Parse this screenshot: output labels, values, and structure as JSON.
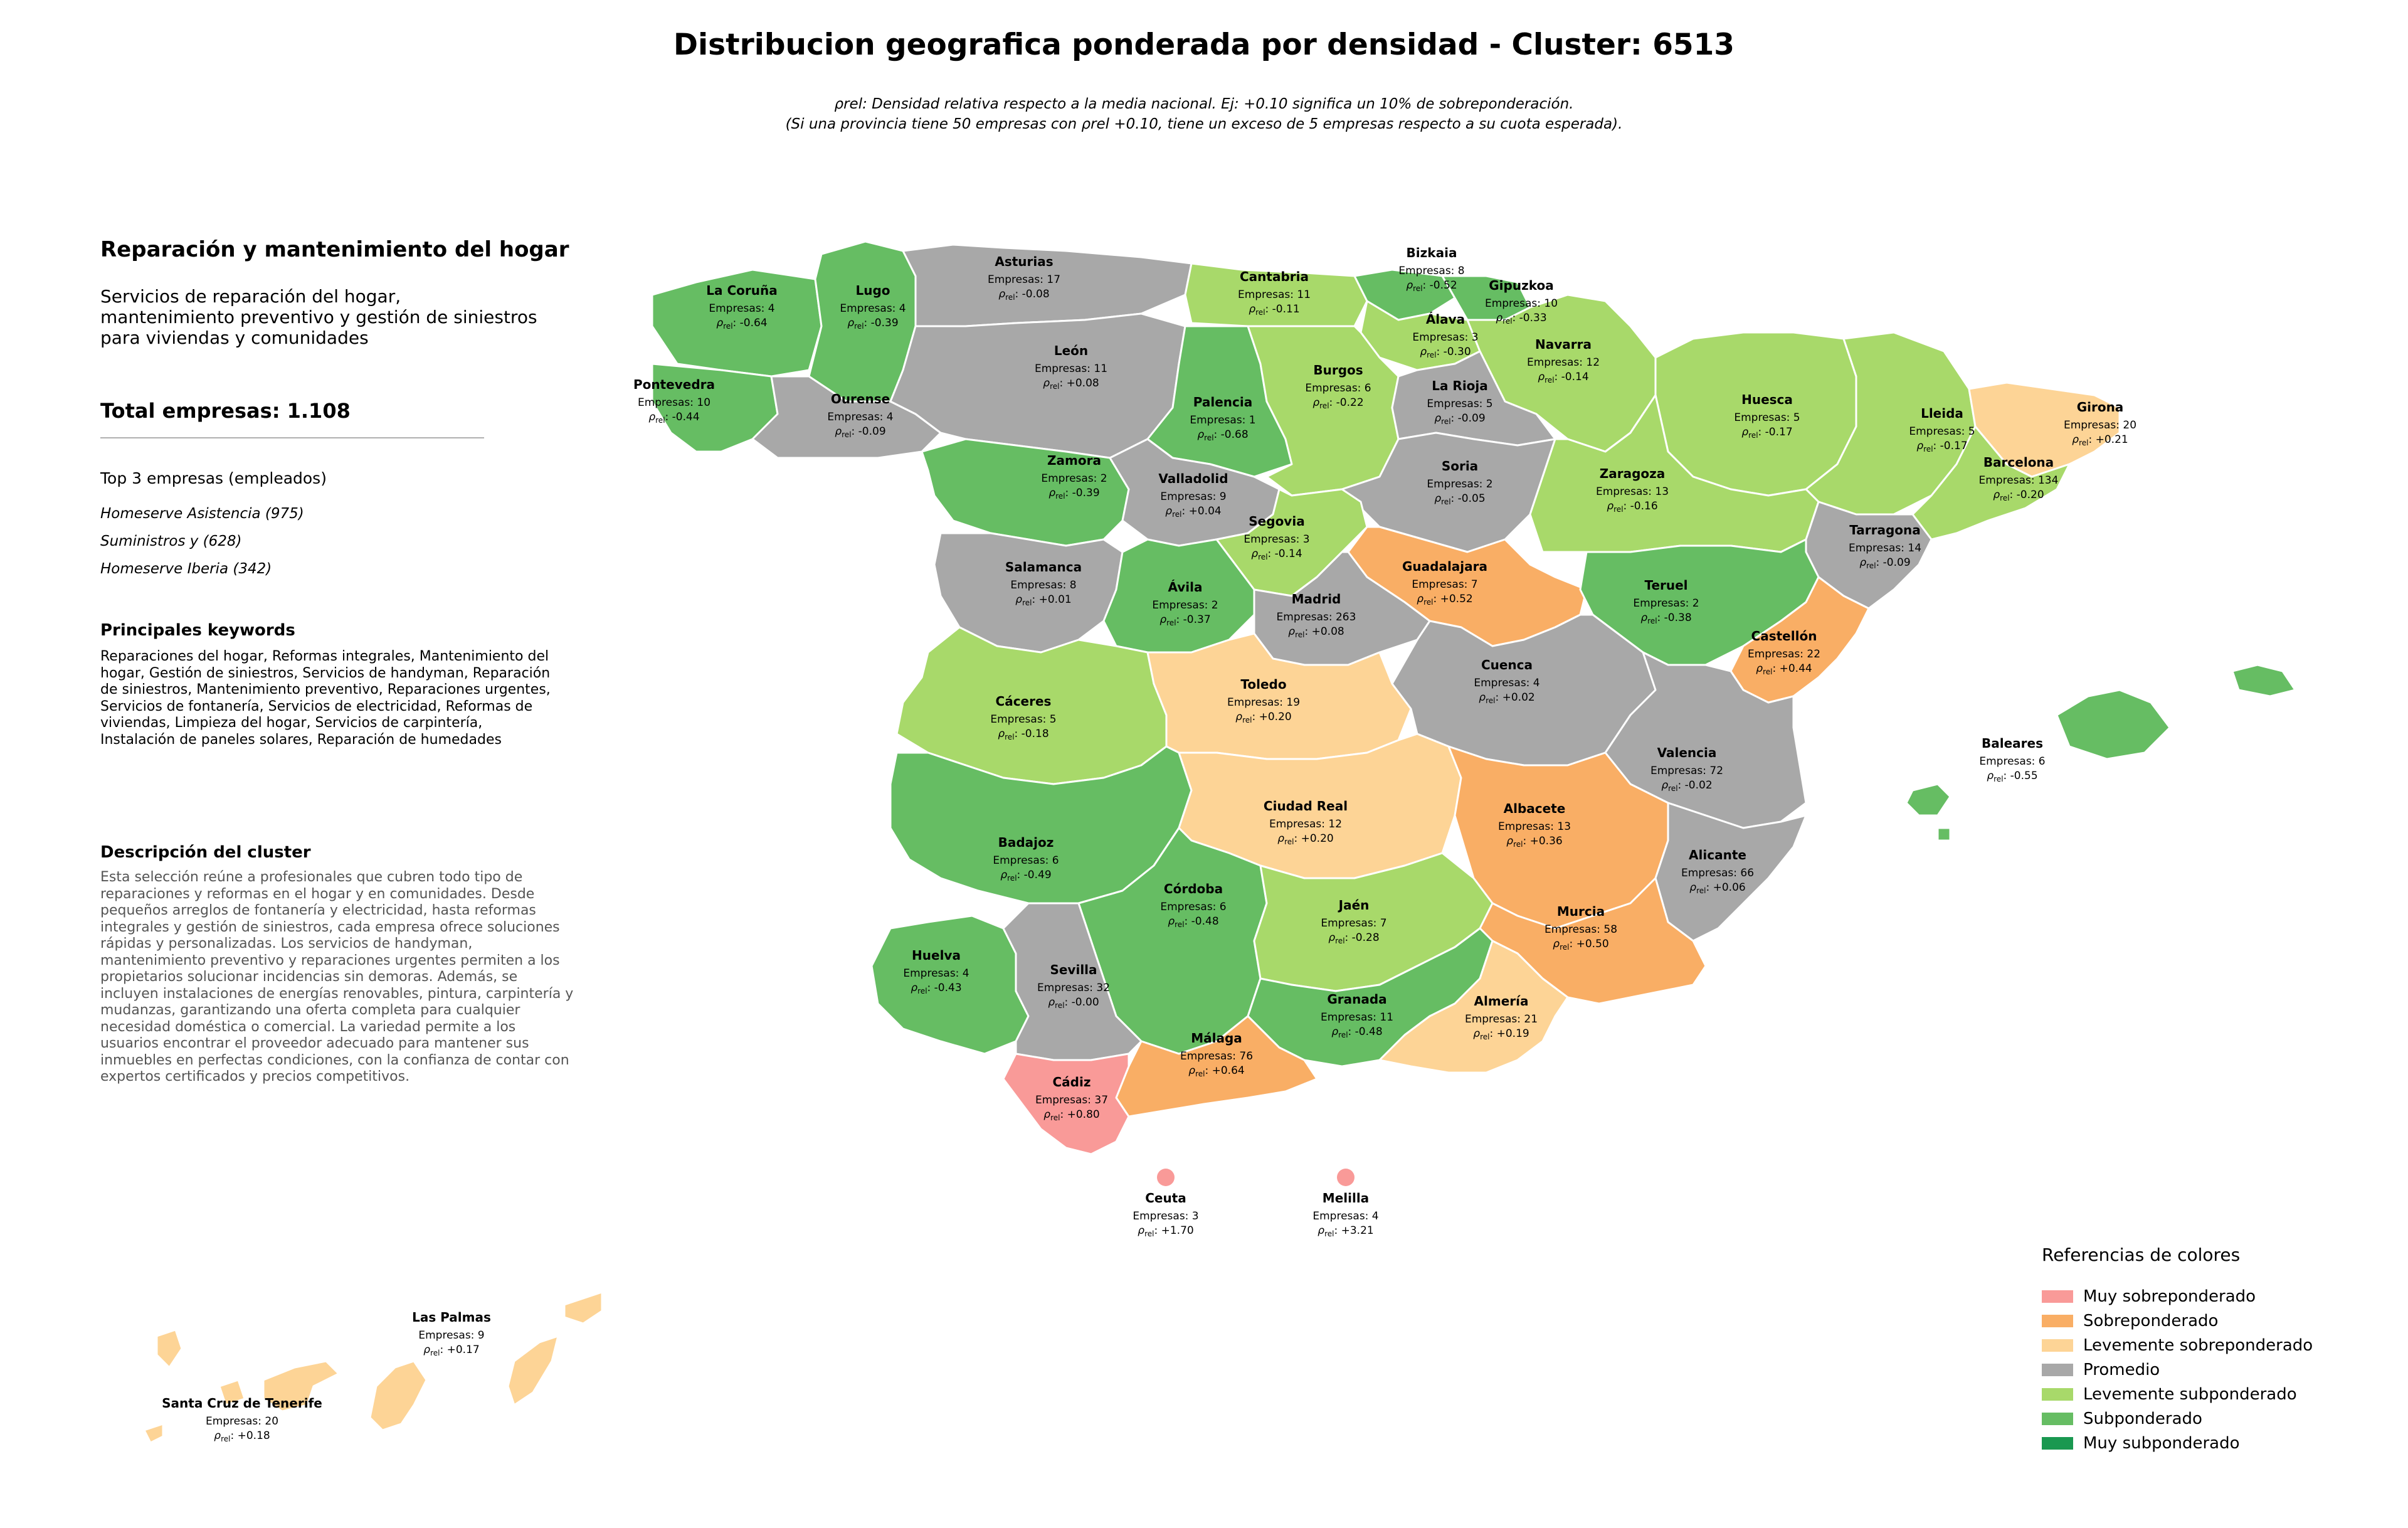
{
  "title": "Distribucion geografica ponderada por densidad - Cluster: 6513",
  "subtitle": {
    "line1": "ρrel: Densidad relativa respecto a la media nacional. Ej: +0.10 significa un 10% de sobreponderación.",
    "line2": "(Si una provincia tiene 50 empresas con ρrel +0.10, tiene un exceso de 5 empresas respecto a su cuota esperada)."
  },
  "sidebar": {
    "heading": "Reparación y mantenimiento del hogar",
    "description": "Servicios de reparación del hogar, mantenimiento preventivo y gestión de siniestros para viviendas y comunidades",
    "total": "Total empresas: 1.108",
    "top3_title": "Top 3 empresas (empleados)",
    "top3": [
      "Homeserve Asistencia (975)",
      "Suministros y (628)",
      "Homeserve Iberia (342)"
    ],
    "keywords_title": "Principales keywords",
    "keywords": "Reparaciones del hogar, Reformas integrales, Mantenimiento del hogar, Gestión de siniestros, Servicios de handyman, Reparación de siniestros, Mantenimiento preventivo, Reparaciones urgentes, Servicios de fontanería, Servicios de electricidad, Reformas de viviendas, Limpieza del hogar, Servicios de carpintería, Instalación de paneles solares, Reparación de humedades",
    "cluster_title": "Descripción del cluster",
    "cluster_text": "Esta selección reúne a profesionales que cubren todo tipo de reparaciones y reformas en el hogar y en comunidades. Desde pequeños arreglos de fontanería y electricidad, hasta reformas integrales y gestión de siniestros, cada empresa ofrece soluciones rápidas y personalizadas. Los servicios de handyman, mantenimiento preventivo y reparaciones urgentes permiten a los propietarios solucionar incidencias sin demoras. Además, se incluyen instalaciones de energías renovables, pintura, carpintería y mudanzas, garantizando una oferta completa para cualquier necesidad doméstica o comercial. La variedad permite a los usuarios encontrar el proveedor adecuado para mantener sus inmuebles en perfectas condiciones, con la confianza de contar con expertos certificados y precios competitivos."
  },
  "labels": {
    "companies_prefix": "Empresas: ",
    "rho_symbol": "ρ",
    "rho_sub": "rel"
  },
  "colors": {
    "Muy sobreponderado": "#f99a98",
    "Sobreponderado": "#f9ae65",
    "Levemente sobreponderado": "#fdd496",
    "Promedio": "#a8a8a8",
    "Levemente subponderado": "#a8d96a",
    "Subponderado": "#66bd63",
    "Muy subponderado": "#1a9850"
  },
  "legend": {
    "title": "Referencias de colores",
    "items": [
      "Muy sobreponderado",
      "Sobreponderado",
      "Levemente sobreponderado",
      "Promedio",
      "Levemente subponderado",
      "Subponderado",
      "Muy subponderado"
    ]
  },
  "provinces": [
    {
      "name": "La Coruña",
      "empresas": 4,
      "rho": "-0.64",
      "category": "Subponderado"
    },
    {
      "name": "Lugo",
      "empresas": 4,
      "rho": "-0.39",
      "category": "Subponderado"
    },
    {
      "name": "Asturias",
      "empresas": 17,
      "rho": "-0.08",
      "category": "Promedio"
    },
    {
      "name": "Cantabria",
      "empresas": 11,
      "rho": "-0.11",
      "category": "Levemente subponderado"
    },
    {
      "name": "Bizkaia",
      "empresas": 8,
      "rho": "-0.52",
      "category": "Subponderado"
    },
    {
      "name": "Gipuzkoa",
      "empresas": 10,
      "rho": "-0.33",
      "category": "Subponderado"
    },
    {
      "name": "Álava",
      "empresas": 3,
      "rho": "-0.30",
      "category": "Levemente subponderado"
    },
    {
      "name": "Navarra",
      "empresas": 12,
      "rho": "-0.14",
      "category": "Levemente subponderado"
    },
    {
      "name": "Pontevedra",
      "empresas": 10,
      "rho": "-0.44",
      "category": "Subponderado"
    },
    {
      "name": "Ourense",
      "empresas": 4,
      "rho": "-0.09",
      "category": "Promedio"
    },
    {
      "name": "León",
      "empresas": 11,
      "rho": "+0.08",
      "category": "Promedio"
    },
    {
      "name": "Palencia",
      "empresas": 1,
      "rho": "-0.68",
      "category": "Subponderado"
    },
    {
      "name": "Burgos",
      "empresas": 6,
      "rho": "-0.22",
      "category": "Levemente subponderado"
    },
    {
      "name": "La Rioja",
      "empresas": 5,
      "rho": "-0.09",
      "category": "Promedio"
    },
    {
      "name": "Huesca",
      "empresas": 5,
      "rho": "-0.17",
      "category": "Levemente subponderado"
    },
    {
      "name": "Lleida",
      "empresas": 5,
      "rho": "-0.17",
      "category": "Levemente subponderado"
    },
    {
      "name": "Girona",
      "empresas": 20,
      "rho": "+0.21",
      "category": "Levemente sobreponderado"
    },
    {
      "name": "Barcelona",
      "empresas": 134,
      "rho": "-0.20",
      "category": "Levemente subponderado"
    },
    {
      "name": "Zamora",
      "empresas": 2,
      "rho": "-0.39",
      "category": "Subponderado"
    },
    {
      "name": "Valladolid",
      "empresas": 9,
      "rho": "+0.04",
      "category": "Promedio"
    },
    {
      "name": "Soria",
      "empresas": 2,
      "rho": "-0.05",
      "category": "Promedio"
    },
    {
      "name": "Zaragoza",
      "empresas": 13,
      "rho": "-0.16",
      "category": "Levemente subponderado"
    },
    {
      "name": "Tarragona",
      "empresas": 14,
      "rho": "-0.09",
      "category": "Promedio"
    },
    {
      "name": "Segovia",
      "empresas": 3,
      "rho": "-0.14",
      "category": "Levemente subponderado"
    },
    {
      "name": "Salamanca",
      "empresas": 8,
      "rho": "+0.01",
      "category": "Promedio"
    },
    {
      "name": "Guadalajara",
      "empresas": 7,
      "rho": "+0.52",
      "category": "Sobreponderado"
    },
    {
      "name": "Ávila",
      "empresas": 2,
      "rho": "-0.37",
      "category": "Subponderado"
    },
    {
      "name": "Madrid",
      "empresas": 263,
      "rho": "+0.08",
      "category": "Promedio"
    },
    {
      "name": "Teruel",
      "empresas": 2,
      "rho": "-0.38",
      "category": "Subponderado"
    },
    {
      "name": "Castellón",
      "empresas": 22,
      "rho": "+0.44",
      "category": "Sobreponderado"
    },
    {
      "name": "Cáceres",
      "empresas": 5,
      "rho": "-0.18",
      "category": "Levemente subponderado"
    },
    {
      "name": "Toledo",
      "empresas": 19,
      "rho": "+0.20",
      "category": "Levemente sobreponderado"
    },
    {
      "name": "Cuenca",
      "empresas": 4,
      "rho": "+0.02",
      "category": "Promedio"
    },
    {
      "name": "Valencia",
      "empresas": 72,
      "rho": "-0.02",
      "category": "Promedio"
    },
    {
      "name": "Baleares",
      "empresas": 6,
      "rho": "-0.55",
      "category": "Subponderado"
    },
    {
      "name": "Badajoz",
      "empresas": 6,
      "rho": "-0.49",
      "category": "Subponderado"
    },
    {
      "name": "Ciudad Real",
      "empresas": 12,
      "rho": "+0.20",
      "category": "Levemente sobreponderado"
    },
    {
      "name": "Albacete",
      "empresas": 13,
      "rho": "+0.36",
      "category": "Sobreponderado"
    },
    {
      "name": "Alicante",
      "empresas": 66,
      "rho": "+0.06",
      "category": "Promedio"
    },
    {
      "name": "Córdoba",
      "empresas": 6,
      "rho": "-0.48",
      "category": "Subponderado"
    },
    {
      "name": "Jaén",
      "empresas": 7,
      "rho": "-0.28",
      "category": "Levemente subponderado"
    },
    {
      "name": "Murcia",
      "empresas": 58,
      "rho": "+0.50",
      "category": "Sobreponderado"
    },
    {
      "name": "Huelva",
      "empresas": 4,
      "rho": "-0.43",
      "category": "Subponderado"
    },
    {
      "name": "Sevilla",
      "empresas": 32,
      "rho": "-0.00",
      "category": "Promedio"
    },
    {
      "name": "Granada",
      "empresas": 11,
      "rho": "-0.48",
      "category": "Subponderado"
    },
    {
      "name": "Almería",
      "empresas": 21,
      "rho": "+0.19",
      "category": "Levemente sobreponderado"
    },
    {
      "name": "Málaga",
      "empresas": 76,
      "rho": "+0.64",
      "category": "Sobreponderado"
    },
    {
      "name": "Cádiz",
      "empresas": 37,
      "rho": "+0.80",
      "category": "Muy sobreponderado"
    },
    {
      "name": "Ceuta",
      "empresas": 3,
      "rho": "+1.70",
      "category": "Muy sobreponderado"
    },
    {
      "name": "Melilla",
      "empresas": 4,
      "rho": "+3.21",
      "category": "Muy sobreponderado"
    },
    {
      "name": "Las Palmas",
      "empresas": 9,
      "rho": "+0.17",
      "category": "Levemente sobreponderado"
    },
    {
      "name": "Santa Cruz de Tenerife",
      "empresas": 20,
      "rho": "+0.18",
      "category": "Levemente sobreponderado"
    }
  ]
}
